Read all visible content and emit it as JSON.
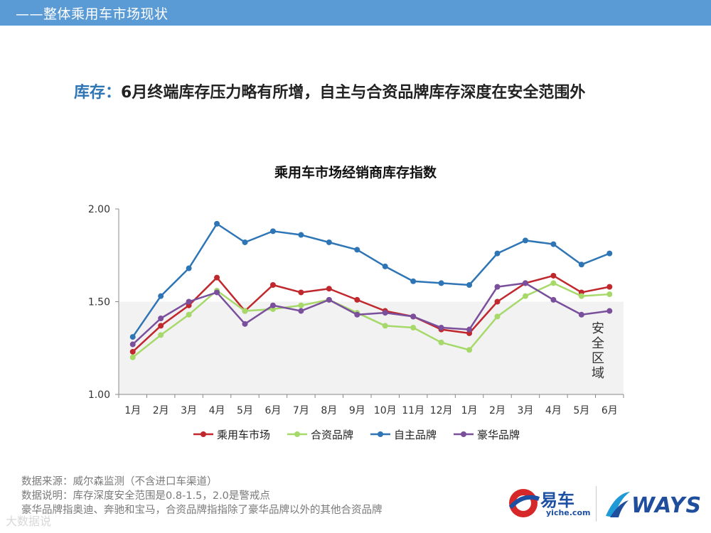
{
  "header": {
    "section_title": "——整体乘用车市场现状"
  },
  "headline": {
    "key": "库存：",
    "text": "6月终端库存压力略有所增，自主与合资品牌库存深度在安全范围外"
  },
  "chart_data": {
    "type": "line",
    "title": "乘用车市场经销商库存指数",
    "categories": [
      "1月",
      "2月",
      "3月",
      "4月",
      "5月",
      "6月",
      "7月",
      "8月",
      "9月",
      "10月",
      "11月",
      "12月",
      "1月",
      "2月",
      "3月",
      "4月",
      "5月",
      "6月"
    ],
    "y_ticks": [
      "2.00",
      "1.50",
      "1.00"
    ],
    "y_tick_values": [
      2.0,
      1.5,
      1.0
    ],
    "ylim": [
      1.0,
      2.0
    ],
    "grid": false,
    "safe_zone": {
      "label": "安全区域",
      "from": 1.0,
      "to": 1.5,
      "color": "#f2f2f2"
    },
    "legend_position": "bottom",
    "series": [
      {
        "name": "乘用车市场",
        "color": "#c0282d",
        "values": [
          1.23,
          1.37,
          1.48,
          1.63,
          1.45,
          1.59,
          1.55,
          1.57,
          1.51,
          1.45,
          1.42,
          1.35,
          1.33,
          1.5,
          1.6,
          1.64,
          1.55,
          1.58
        ]
      },
      {
        "name": "合资品牌",
        "color": "#a6d96a",
        "values": [
          1.2,
          1.32,
          1.43,
          1.56,
          1.45,
          1.46,
          1.48,
          1.51,
          1.44,
          1.37,
          1.36,
          1.28,
          1.24,
          1.42,
          1.53,
          1.6,
          1.53,
          1.54
        ]
      },
      {
        "name": "自主品牌",
        "color": "#2e75b6",
        "values": [
          1.31,
          1.53,
          1.68,
          1.92,
          1.82,
          1.88,
          1.86,
          1.82,
          1.78,
          1.69,
          1.61,
          1.6,
          1.59,
          1.76,
          1.83,
          1.81,
          1.7,
          1.76
        ]
      },
      {
        "name": "豪华品牌",
        "color": "#7a4f9c",
        "values": [
          1.27,
          1.41,
          1.5,
          1.55,
          1.38,
          1.48,
          1.45,
          1.51,
          1.43,
          1.44,
          1.42,
          1.36,
          1.35,
          1.58,
          1.6,
          1.51,
          1.43,
          1.45
        ]
      }
    ]
  },
  "notes": {
    "line1": "数据来源：威尔森监测（不含进口车渠道）",
    "line2": "数据说明：库存深度安全范围是0.8-1.5，2.0是警戒点",
    "line3": "豪华品牌指奥迪、奔驰和宝马，合资品牌指指除了豪华品牌以外的其他合资品牌"
  },
  "logos": {
    "yiche": "易车",
    "yiche_sub": "yiche.com",
    "ways": "WAYS"
  },
  "watermark": "大数据说"
}
